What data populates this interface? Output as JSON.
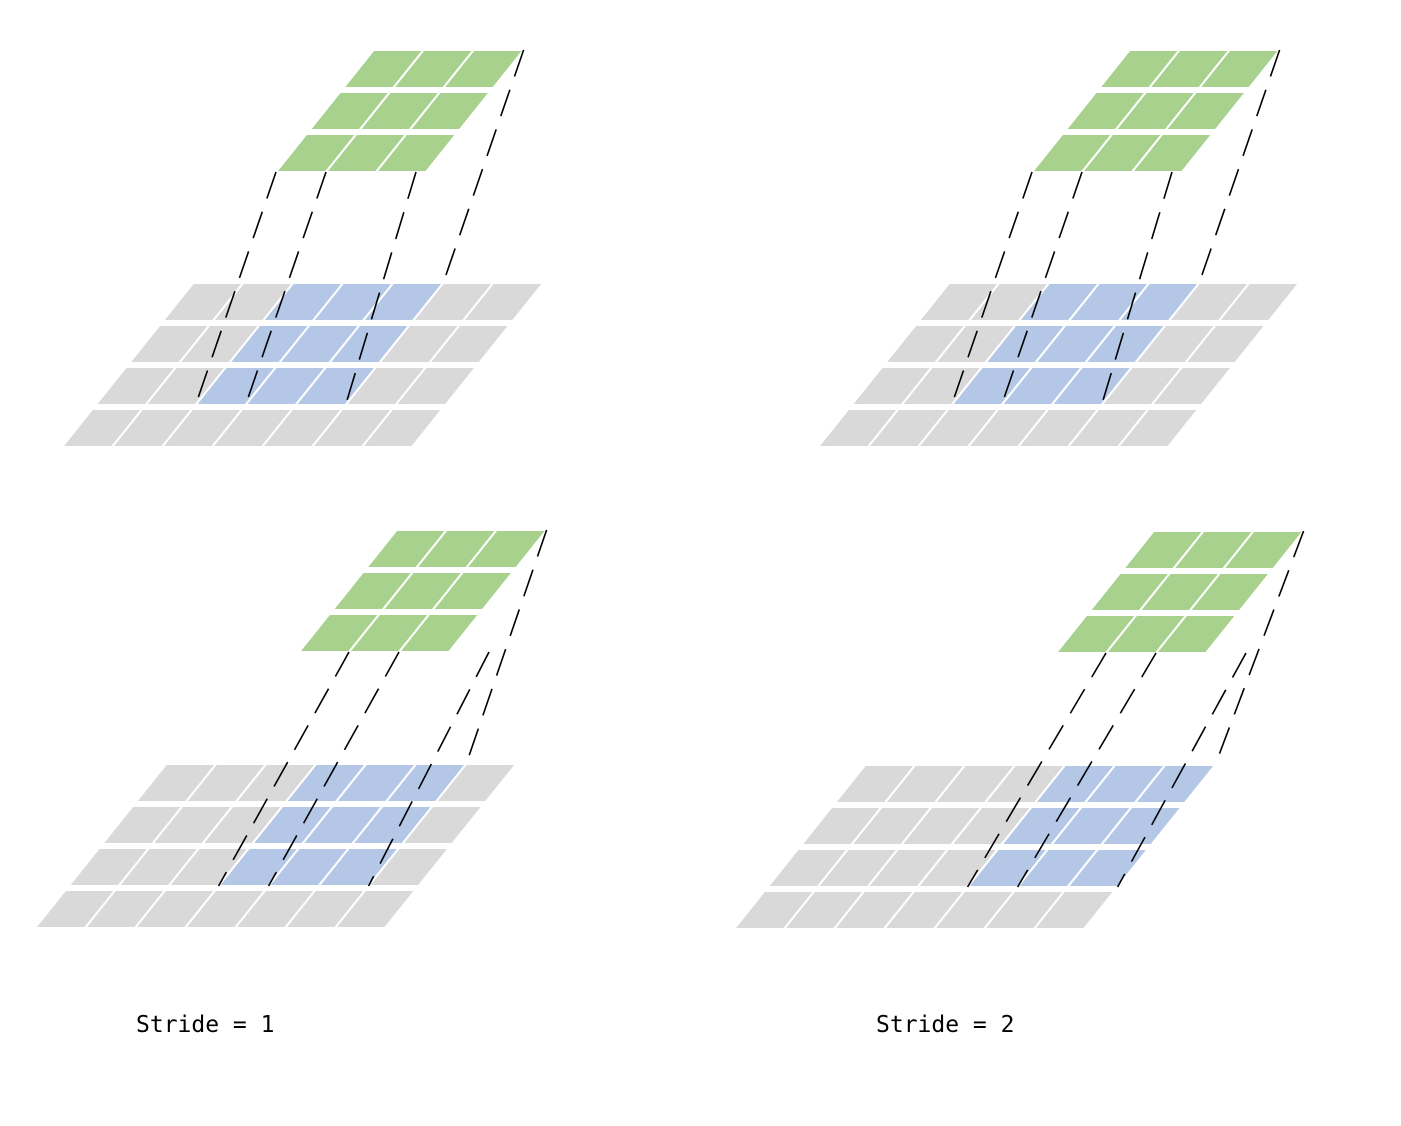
{
  "captions": {
    "left": "Stride = 1",
    "right": "Stride = 2"
  },
  "colors": {
    "input_cell": "#d9d9d9",
    "receptive_field_cell": "#b4c7e7",
    "output_cell": "#a9d18e",
    "grid_line": "#ffffff",
    "projection_line": "#000000"
  },
  "panels": [
    {
      "name": "stride-1-step-1",
      "stride": 1,
      "output_row": 1,
      "output_col": 1,
      "field_row": 1,
      "field_col": 2
    },
    {
      "name": "stride-2-step-1",
      "stride": 2,
      "output_row": 1,
      "output_col": 1,
      "field_row": 1,
      "field_col": 2
    },
    {
      "name": "stride-1-step-2",
      "stride": 1,
      "output_row": 1,
      "output_col": 2,
      "field_row": 1,
      "field_col": 3
    },
    {
      "name": "stride-2-step-2",
      "stride": 2,
      "output_row": 1,
      "output_col": 2,
      "field_row": 1,
      "field_col": 4
    }
  ],
  "grid": {
    "input_rows": 4,
    "input_cols": 7,
    "kernel_rows": 3,
    "kernel_cols": 3,
    "output_rows": 3,
    "output_cols": 3
  }
}
